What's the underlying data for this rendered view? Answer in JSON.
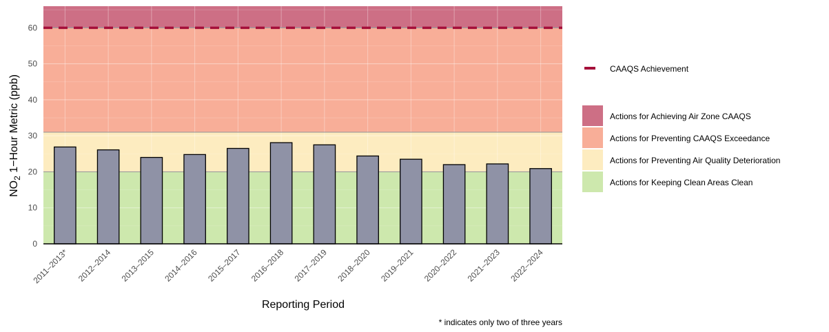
{
  "chart_data": {
    "type": "bar",
    "ylabel_main": "NO",
    "ylabel_sub": "2",
    "ylabel_rest": " 1−Hour Metric (ppb)",
    "xlabel": "Reporting Period",
    "footnote": "* indicates only two of three years",
    "ylim": [
      0,
      66
    ],
    "yticks": [
      0,
      10,
      20,
      30,
      40,
      50,
      60
    ],
    "categories": [
      "2011–2013*",
      "2012–2014",
      "2013–2015",
      "2014–2016",
      "2015–2017",
      "2016–2018",
      "2017–2019",
      "2018–2020",
      "2019–2021",
      "2020–2022",
      "2021–2023",
      "2022–2024"
    ],
    "values": [
      26.9,
      26.1,
      24.0,
      24.8,
      26.5,
      28.1,
      27.5,
      24.4,
      23.5,
      22.0,
      22.2,
      20.9
    ],
    "bar_color": "#8f92a6",
    "bands": [
      {
        "from": 0,
        "to": 20,
        "color": "#cde8ad",
        "label": "Actions for Keeping Clean Areas Clean"
      },
      {
        "from": 20,
        "to": 31,
        "color": "#fdecc0",
        "label": "Actions for Preventing Air Quality Deterioration"
      },
      {
        "from": 31,
        "to": 60,
        "color": "#f8ae98",
        "label": "Actions for Preventing CAAQS Exceedance"
      },
      {
        "from": 60,
        "to": 66,
        "color": "#cd6f85",
        "label": "Actions for Achieving Air Zone CAAQS"
      }
    ],
    "threshold": {
      "value": 60,
      "color": "#a50f3a",
      "label": "CAAQS Achievement"
    },
    "legend_position": "right"
  }
}
